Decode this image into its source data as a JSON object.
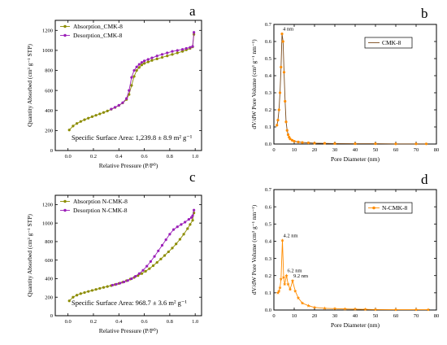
{
  "chart_data": [
    {
      "panel": "a",
      "type": "line",
      "xlabel": "Relative Pressure (P/P⁰)",
      "ylabel": "Quantity Absorbed (cm³ g⁻¹ STP)",
      "xlim": [
        -0.1,
        1.05
      ],
      "ylim": [
        0,
        1300
      ],
      "xticks": [
        0.0,
        0.2,
        0.4,
        0.6,
        0.8,
        1.0
      ],
      "xtick_labels": [
        "0.0",
        "0.2",
        "0.4",
        "0.6",
        "0.8",
        "1.0"
      ],
      "yticks": [
        0,
        200,
        400,
        600,
        800,
        1000,
        1200
      ],
      "ytick_labels": [
        "0",
        "200",
        "400",
        "600",
        "800",
        "1000",
        "1200"
      ],
      "annotation": "Specific Surface Area: 1,239.8 ± 8.9 m² g⁻¹",
      "legend_position": "top-left",
      "series": [
        {
          "name": "Absorption_CMK-8",
          "color": "#8c8c00",
          "marker": "circle",
          "x": [
            0.01,
            0.04,
            0.07,
            0.1,
            0.13,
            0.16,
            0.19,
            0.22,
            0.25,
            0.28,
            0.31,
            0.34,
            0.37,
            0.4,
            0.43,
            0.46,
            0.48,
            0.5,
            0.52,
            0.54,
            0.56,
            0.58,
            0.6,
            0.63,
            0.66,
            0.7,
            0.74,
            0.78,
            0.82,
            0.86,
            0.9,
            0.93,
            0.96,
            0.98,
            0.99
          ],
          "y": [
            205,
            245,
            270,
            290,
            308,
            323,
            338,
            352,
            366,
            380,
            395,
            412,
            430,
            450,
            475,
            510,
            560,
            650,
            740,
            800,
            830,
            855,
            870,
            885,
            900,
            915,
            930,
            945,
            960,
            975,
            990,
            1005,
            1020,
            1035,
            1160
          ]
        },
        {
          "name": "Desorption_CMK-8",
          "color": "#9b1fb8",
          "marker": "circle",
          "x": [
            0.99,
            0.98,
            0.96,
            0.93,
            0.9,
            0.86,
            0.82,
            0.78,
            0.74,
            0.7,
            0.66,
            0.63,
            0.6,
            0.58,
            0.56,
            0.54,
            0.52,
            0.5,
            0.48,
            0.46,
            0.43,
            0.4,
            0.37,
            0.34
          ],
          "y": [
            1180,
            1040,
            1030,
            1020,
            1010,
            1000,
            990,
            975,
            960,
            945,
            925,
            910,
            895,
            880,
            860,
            835,
            800,
            730,
            600,
            520,
            478,
            452,
            432,
            414
          ]
        }
      ]
    },
    {
      "panel": "b",
      "type": "line",
      "xlabel": "Pore Diameter (nm)",
      "ylabel": "dV/dW Pore Volume (cm³ g⁻¹ nm⁻¹)",
      "xlim": [
        0,
        80
      ],
      "ylim": [
        0,
        0.7
      ],
      "xticks": [
        0,
        10,
        20,
        30,
        40,
        50,
        60,
        70,
        80
      ],
      "xtick_labels": [
        "0",
        "10",
        "20",
        "30",
        "40",
        "50",
        "60",
        "70",
        "80"
      ],
      "yticks": [
        0.0,
        0.1,
        0.2,
        0.3,
        0.4,
        0.5,
        0.6,
        0.7
      ],
      "ytick_labels": [
        "0.0",
        "0.1",
        "0.2",
        "0.3",
        "0.4",
        "0.5",
        "0.6",
        "0.7"
      ],
      "legend_position": "top-right",
      "peak_labels": [
        {
          "x": 4,
          "y": 0.645,
          "text": "4 nm"
        }
      ],
      "series": [
        {
          "name": "CMK-8",
          "color": "#7a4a1a",
          "marker": "circle",
          "marker_color": "#ff8c00",
          "x": [
            1.5,
            2.0,
            2.5,
            3.0,
            3.5,
            4.0,
            4.5,
            5.0,
            5.5,
            6.0,
            6.5,
            7.0,
            7.5,
            8.0,
            9.0,
            10,
            12,
            14,
            17,
            20,
            25,
            30,
            40,
            50,
            60,
            70,
            75
          ],
          "y": [
            0.11,
            0.14,
            0.2,
            0.3,
            0.45,
            0.645,
            0.6,
            0.42,
            0.25,
            0.13,
            0.08,
            0.055,
            0.04,
            0.03,
            0.022,
            0.016,
            0.012,
            0.009,
            0.007,
            0.005,
            0.004,
            0.003,
            0.002,
            0.002,
            0.001,
            0.001,
            0.001
          ]
        }
      ]
    },
    {
      "panel": "c",
      "type": "line",
      "xlabel": "Relative Pressure (P/P⁰)",
      "ylabel": "Quantity Absorbed (cm³ g⁻¹ STP)",
      "xlim": [
        -0.1,
        1.05
      ],
      "ylim": [
        0,
        1300
      ],
      "xticks": [
        0.0,
        0.2,
        0.4,
        0.6,
        0.8,
        1.0
      ],
      "xtick_labels": [
        "0.0",
        "0.2",
        "0.4",
        "0.6",
        "0.8",
        "1.0"
      ],
      "yticks": [
        0,
        200,
        400,
        600,
        800,
        1000,
        1200
      ],
      "ytick_labels": [
        "0",
        "200",
        "400",
        "600",
        "800",
        "1000",
        "1200"
      ],
      "annotation": "Specific Surface Area: 968.7 ± 3.6 m² g⁻¹",
      "legend_position": "top-left",
      "series": [
        {
          "name": "Absorption N-CMK-8",
          "color": "#8c8c00",
          "marker": "circle",
          "x": [
            0.01,
            0.04,
            0.07,
            0.1,
            0.13,
            0.16,
            0.19,
            0.22,
            0.25,
            0.28,
            0.31,
            0.34,
            0.37,
            0.4,
            0.43,
            0.46,
            0.49,
            0.52,
            0.55,
            0.58,
            0.61,
            0.64,
            0.67,
            0.7,
            0.73,
            0.76,
            0.79,
            0.82,
            0.85,
            0.88,
            0.91,
            0.94,
            0.96,
            0.98,
            0.99
          ],
          "y": [
            160,
            200,
            222,
            238,
            250,
            262,
            273,
            284,
            295,
            305,
            315,
            325,
            336,
            348,
            362,
            378,
            395,
            413,
            433,
            455,
            480,
            508,
            540,
            575,
            612,
            650,
            690,
            730,
            775,
            825,
            880,
            940,
            985,
            1030,
            1110
          ]
        },
        {
          "name": "Desorption N-CMK-8",
          "color": "#9b1fb8",
          "marker": "circle",
          "x": [
            0.99,
            0.98,
            0.97,
            0.95,
            0.92,
            0.89,
            0.86,
            0.83,
            0.8,
            0.77,
            0.74,
            0.71,
            0.68,
            0.65,
            0.62,
            0.59,
            0.56,
            0.53,
            0.5,
            0.47,
            0.44,
            0.41,
            0.38,
            0.35
          ],
          "y": [
            1140,
            1080,
            1060,
            1040,
            1010,
            985,
            960,
            930,
            880,
            820,
            760,
            700,
            640,
            585,
            535,
            490,
            455,
            425,
            400,
            380,
            365,
            352,
            340,
            330
          ]
        }
      ]
    },
    {
      "panel": "d",
      "type": "line",
      "xlabel": "Pore Diameter (nm)",
      "ylabel": "dV/dW Pore Volume (cm³ g⁻¹ nm⁻¹)",
      "xlim": [
        0,
        80
      ],
      "ylim": [
        0,
        0.7
      ],
      "xticks": [
        0,
        10,
        20,
        30,
        40,
        50,
        60,
        70,
        80
      ],
      "xtick_labels": [
        "0",
        "10",
        "20",
        "30",
        "40",
        "50",
        "60",
        "70",
        "80"
      ],
      "yticks": [
        0.0,
        0.1,
        0.2,
        0.3,
        0.4,
        0.5,
        0.6,
        0.7
      ],
      "ytick_labels": [
        "0.0",
        "0.1",
        "0.2",
        "0.3",
        "0.4",
        "0.5",
        "0.6",
        "0.7"
      ],
      "legend_position": "top-right",
      "peak_labels": [
        {
          "x": 4.2,
          "y": 0.405,
          "text": "4.2 nm"
        },
        {
          "x": 6.2,
          "y": 0.2,
          "text": "6.2 nm"
        },
        {
          "x": 9.2,
          "y": 0.17,
          "text": "9.2 nm"
        }
      ],
      "series": [
        {
          "name": "N-CMK-8",
          "color": "#ff8c00",
          "marker": "star",
          "x": [
            2.0,
            2.5,
            3.0,
            3.5,
            4.2,
            4.8,
            5.3,
            6.2,
            7.0,
            8.0,
            9.2,
            10.5,
            12,
            14,
            17,
            20,
            25,
            30,
            35,
            40,
            45,
            50,
            60,
            70,
            76
          ],
          "y": [
            0.1,
            0.11,
            0.13,
            0.18,
            0.405,
            0.19,
            0.15,
            0.2,
            0.15,
            0.12,
            0.17,
            0.11,
            0.07,
            0.04,
            0.025,
            0.015,
            0.01,
            0.008,
            0.006,
            0.005,
            0.004,
            0.003,
            0.002,
            0.002,
            0.002
          ]
        }
      ]
    }
  ]
}
